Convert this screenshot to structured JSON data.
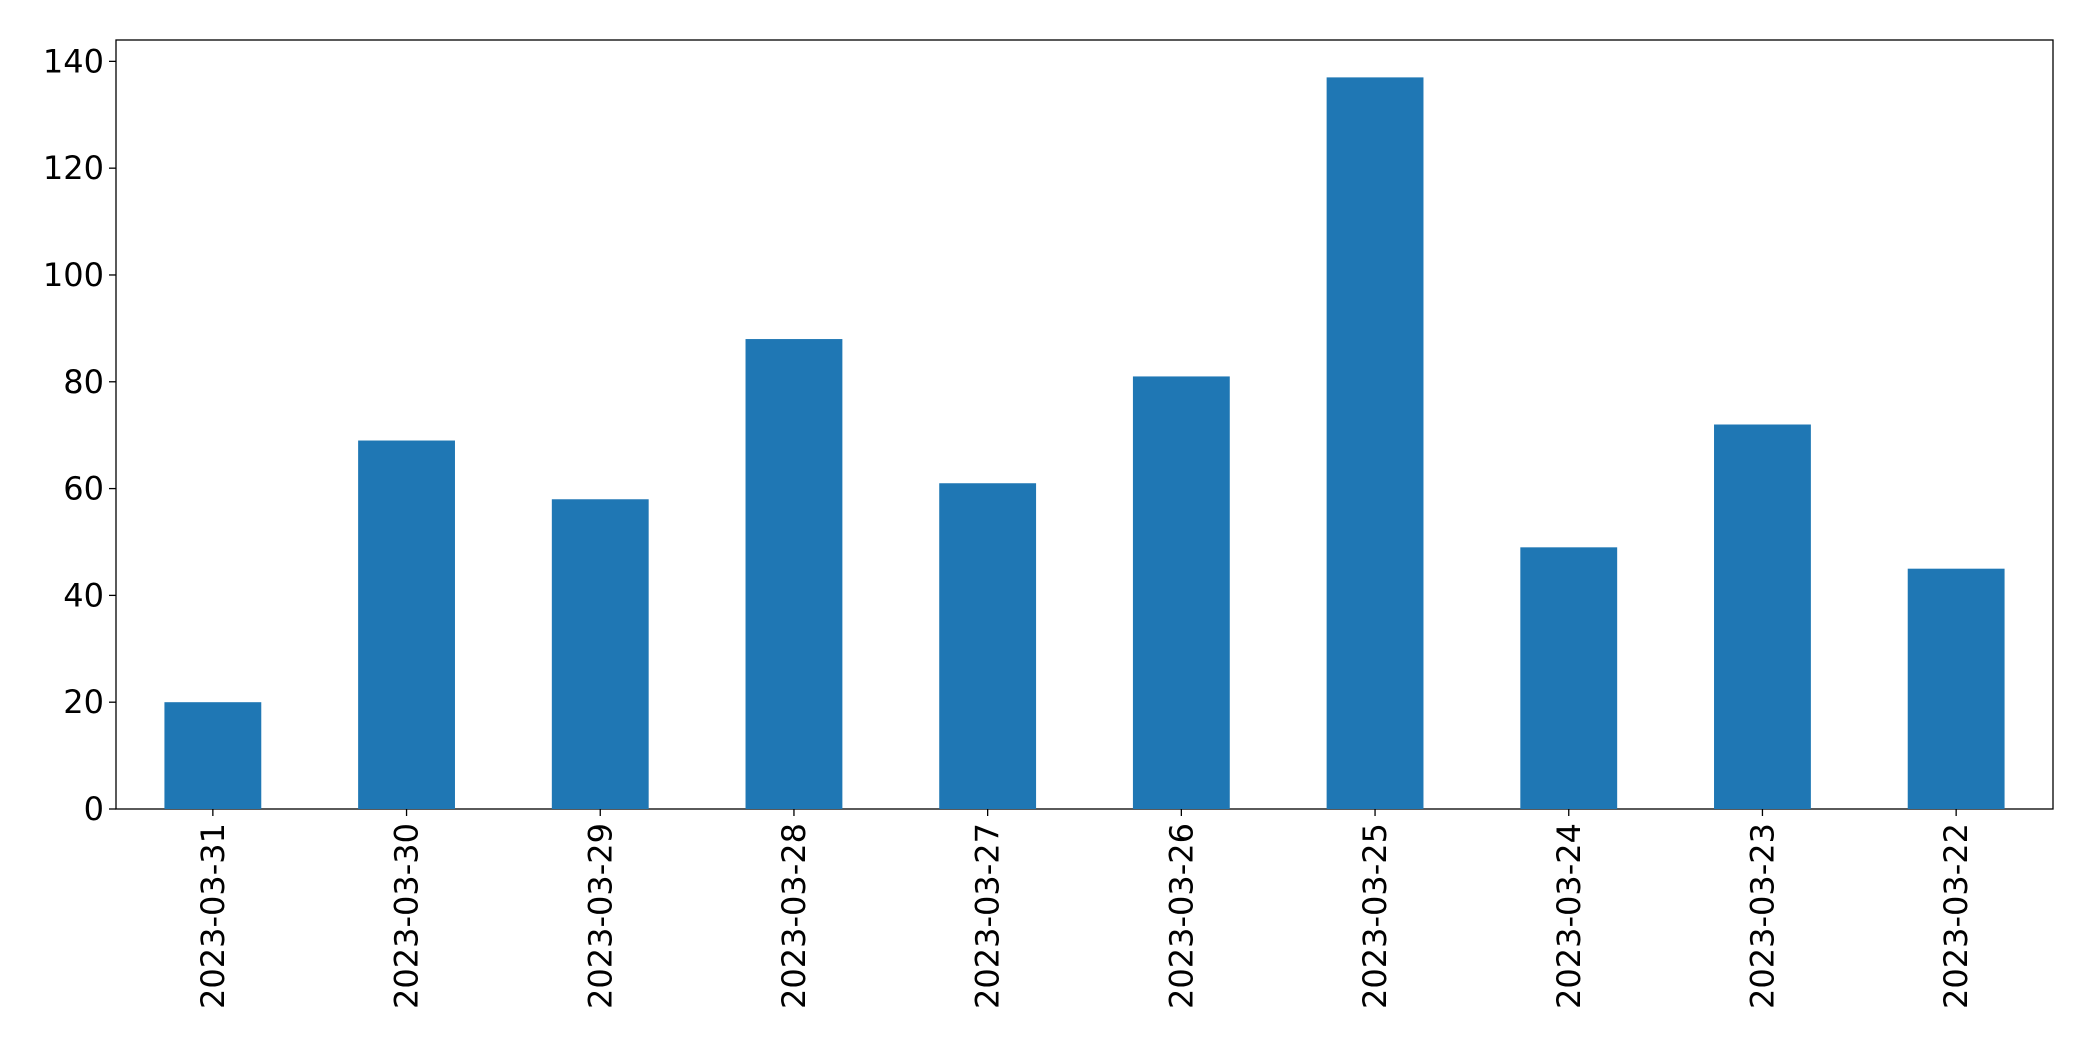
{
  "chart_data": {
    "type": "bar",
    "categories": [
      "2023-03-31",
      "2023-03-30",
      "2023-03-29",
      "2023-03-28",
      "2023-03-27",
      "2023-03-26",
      "2023-03-25",
      "2023-03-24",
      "2023-03-23",
      "2023-03-22"
    ],
    "values": [
      20,
      69,
      58,
      88,
      61,
      81,
      137,
      49,
      72,
      45
    ],
    "color": "#1f77b4",
    "ylim": [
      0,
      144
    ],
    "yticks": [
      0,
      20,
      40,
      60,
      80,
      100,
      120,
      140
    ],
    "grid": false
  }
}
